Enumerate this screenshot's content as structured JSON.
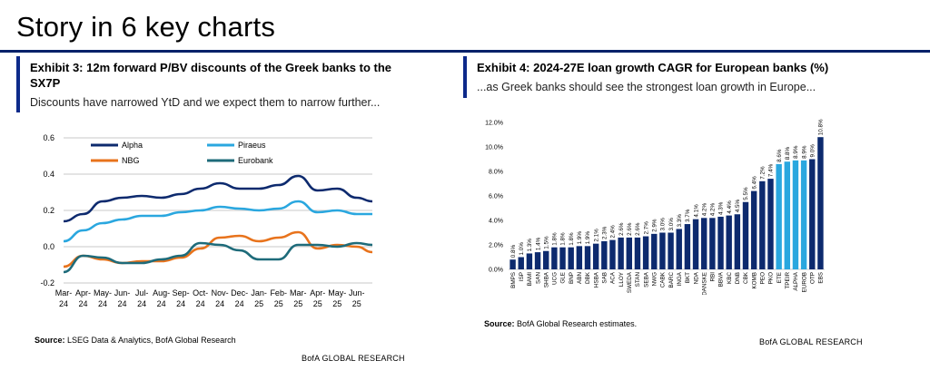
{
  "page": {
    "title": "Story in 6 key charts"
  },
  "left": {
    "exhibit_title": "Exhibit 3: 12m forward P/BV discounts of the Greek banks to the SX7P",
    "subtitle": "Discounts have narrowed YtD and we expect them to narrow further...",
    "source_label": "Source:",
    "source_text": " LSEG Data & Analytics, BofA Global Research",
    "footer": "BofA GLOBAL RESEARCH"
  },
  "right": {
    "exhibit_title": "Exhibit 4: 2024-27E loan growth CAGR for European banks (%)",
    "subtitle": "...as Greek banks should see the strongest loan growth in Europe...",
    "source_label": "Source:",
    "source_text": " BofA Global Research estimates.",
    "footer": "BofA GLOBAL RESEARCH"
  },
  "chart_data": [
    {
      "type": "line",
      "title": "Exhibit 3: 12m forward P/BV discounts of the Greek banks to the SX7P",
      "ylim": [
        -0.2,
        0.6
      ],
      "yticks": [
        "0.6",
        "0.4",
        "0.2",
        "0.0",
        "-0.2"
      ],
      "ytick_values": [
        0.6,
        0.4,
        0.2,
        0.0,
        -0.2
      ],
      "grid": true,
      "legend": "top-center",
      "x_ticks": [
        [
          "Mar-",
          "24"
        ],
        [
          "Apr-",
          "24"
        ],
        [
          "May-",
          "24"
        ],
        [
          "Jun-",
          "24"
        ],
        [
          "Jul-",
          "24"
        ],
        [
          "Aug-",
          "24"
        ],
        [
          "Sep-",
          "24"
        ],
        [
          "Oct-",
          "24"
        ],
        [
          "Nov-",
          "24"
        ],
        [
          "Dec-",
          "24"
        ],
        [
          "Jan-",
          "25"
        ],
        [
          "Feb-",
          "25"
        ],
        [
          "Mar-",
          "25"
        ],
        [
          "Apr-",
          "25"
        ],
        [
          "May-",
          "25"
        ],
        [
          "Jun-",
          "25"
        ]
      ],
      "x_months": [
        0,
        1,
        2,
        3,
        4,
        5,
        6,
        7,
        8,
        9,
        10,
        11,
        12,
        13,
        14,
        15,
        15.8
      ],
      "series": [
        {
          "name": "Alpha",
          "color": "#0d2a6e",
          "values": [
            0.14,
            0.18,
            0.25,
            0.27,
            0.28,
            0.27,
            0.29,
            0.32,
            0.35,
            0.32,
            0.32,
            0.34,
            0.39,
            0.31,
            0.32,
            0.27,
            0.25
          ]
        },
        {
          "name": "Piraeus",
          "color": "#2aa7df",
          "values": [
            0.03,
            0.09,
            0.13,
            0.15,
            0.17,
            0.17,
            0.19,
            0.2,
            0.22,
            0.21,
            0.2,
            0.21,
            0.25,
            0.19,
            0.2,
            0.18,
            0.18
          ]
        },
        {
          "name": "NBG",
          "color": "#e8731c",
          "values": [
            -0.11,
            -0.05,
            -0.07,
            -0.09,
            -0.08,
            -0.08,
            -0.06,
            -0.01,
            0.05,
            0.06,
            0.03,
            0.05,
            0.08,
            -0.01,
            0.01,
            0.0,
            -0.03
          ]
        },
        {
          "name": "Eurobank",
          "color": "#1e6b7a",
          "values": [
            -0.14,
            -0.05,
            -0.06,
            -0.09,
            -0.09,
            -0.07,
            -0.05,
            0.02,
            0.01,
            -0.02,
            -0.07,
            -0.07,
            0.01,
            0.01,
            0.0,
            0.02,
            0.01
          ]
        }
      ]
    },
    {
      "type": "bar",
      "title": "Exhibit 4: 2024-27E loan growth CAGR for European banks (%)",
      "ylim": [
        0,
        12
      ],
      "yticks": [
        "12.0%",
        "10.0%",
        "8.0%",
        "6.0%",
        "4.0%",
        "2.0%",
        "0.0%"
      ],
      "ytick_values": [
        12,
        10,
        8,
        6,
        4,
        2,
        0
      ],
      "grid": false,
      "categories": [
        "BMPS",
        "ISP",
        "BAMI",
        "SAN",
        "SHBA",
        "UCG",
        "GLE",
        "BNP",
        "ABN",
        "DBK",
        "HSBA",
        "SAB",
        "ACA",
        "LLOY",
        "SWEDA",
        "STAN",
        "SEBA",
        "NWG",
        "CABK",
        "BARC",
        "INGA",
        "BKT",
        "NDA",
        "DANSKE",
        "RBI",
        "BBVA",
        "KBC",
        "DNB",
        "CBK",
        "KOMB",
        "PEO",
        "PKO",
        "ETE",
        "TPEIR",
        "ALPHA",
        "EUROB",
        "OTP",
        "EBS"
      ],
      "values": [
        0.8,
        1.0,
        1.3,
        1.4,
        1.5,
        1.8,
        1.8,
        1.8,
        1.9,
        1.9,
        2.1,
        2.3,
        2.4,
        2.6,
        2.6,
        2.6,
        2.7,
        2.9,
        3.0,
        3.0,
        3.3,
        3.7,
        4.1,
        4.2,
        4.2,
        4.3,
        4.4,
        4.5,
        5.5,
        6.4,
        7.2,
        7.4,
        8.6,
        8.8,
        8.9,
        8.9,
        9.0,
        10.8
      ],
      "value_labels": [
        "0.8%",
        "1.0%",
        "1.3%",
        "1.4%",
        "1.5%",
        "1.8%",
        "1.8%",
        "1.8%",
        "1.9%",
        "1.9%",
        "2.1%",
        "2.3%",
        "2.4%",
        "2.6%",
        "2.6%",
        "2.6%",
        "2.7%",
        "2.9%",
        "3.0%",
        "3.0%",
        "3.3%",
        "3.7%",
        "4.1%",
        "4.2%",
        "4.2%",
        "4.3%",
        "4.4%",
        "4.5%",
        "5.5%",
        "6.4%",
        "7.2%",
        "7.4%",
        "8.6%",
        "8.8%",
        "8.9%",
        "8.9%",
        "9.0%",
        "10.8%"
      ],
      "highlight": [
        "ETE",
        "TPEIR",
        "ALPHA",
        "EUROB"
      ],
      "colors": {
        "default": "#0d2a6e",
        "highlight": "#2aa7df"
      }
    }
  ]
}
